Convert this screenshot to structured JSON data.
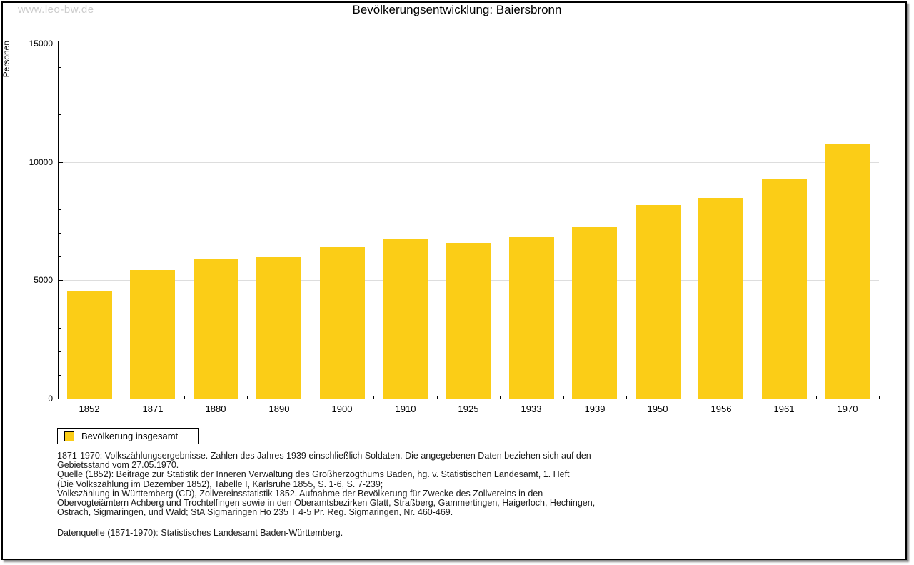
{
  "watermark": "www.leo-bw.de",
  "title": "Bevölkerungsentwicklung: Baiersbronn",
  "ylabel": "Personen",
  "legend": {
    "label": "Bevölkerung insgesamt"
  },
  "colors": {
    "bar": "#FBCD17",
    "grid": "#DDDDDD",
    "axis": "#000000",
    "watermark": "#CCCCCC"
  },
  "chart_data": {
    "type": "bar",
    "title": "Bevölkerungsentwicklung: Baiersbronn",
    "xlabel": "",
    "ylabel": "Personen",
    "categories": [
      "1852",
      "1871",
      "1880",
      "1890",
      "1900",
      "1910",
      "1925",
      "1933",
      "1939",
      "1950",
      "1956",
      "1961",
      "1970"
    ],
    "values": [
      4570,
      5440,
      5880,
      5970,
      6410,
      6730,
      6580,
      6830,
      7230,
      8170,
      8470,
      9290,
      10730
    ],
    "series_name": "Bevölkerung insgesamt",
    "ylim": [
      0,
      15000
    ],
    "yticks": [
      0,
      5000,
      10000,
      15000
    ],
    "y_minor_step": 1000,
    "grid": true,
    "legend_position": "bottom-left",
    "bar_color": "#FBCD17"
  },
  "footer": {
    "lines": [
      "1871-1970: Volkszählungsergebnisse. Zahlen des Jahres 1939 einschließlich Soldaten. Die angegebenen Daten beziehen sich auf den",
      "Gebietsstand vom 27.05.1970.",
      "Quelle (1852): Beiträge zur Statistik der Inneren Verwaltung des Großherzogthums Baden, hg. v. Statistischen Landesamt, 1. Heft",
      "(Die Volkszählung im Dezember 1852), Tabelle I, Karlsruhe 1855, S. 1-6, S. 7-239;",
      "Volkszählung in Württemberg (CD), Zollvereinsstatistik 1852. Aufnahme der Bevölkerung für Zwecke des Zollvereins in den",
      "Obervogteiämtern Achberg und Trochtelfingen sowie in den Oberamtsbezirken Glatt, Straßberg, Gammertingen, Haigerloch, Hechingen,",
      "Ostrach, Sigmaringen, und Wald; StA Sigmaringen Ho 235 T 4-5 Pr. Reg. Sigmaringen, Nr. 460-469."
    ],
    "datasource": "Datenquelle (1871-1970): Statistisches Landesamt Baden-Württemberg."
  }
}
